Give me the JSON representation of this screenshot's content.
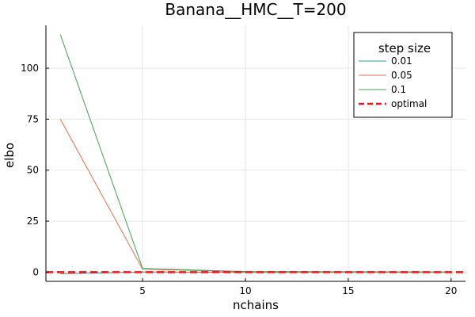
{
  "chart_data": {
    "type": "line",
    "title": "Banana__HMC__T=200",
    "xlabel": "nchains",
    "ylabel": "elbo",
    "xlim": [
      0.3,
      20.7
    ],
    "ylim": [
      -4.5,
      121
    ],
    "xticks": [
      5,
      10,
      15,
      20
    ],
    "yticks": [
      0,
      25,
      50,
      75,
      100
    ],
    "grid": true,
    "legend_title": "step size",
    "legend_position": "top-right",
    "series": [
      {
        "name": "0.01",
        "color": "#1a9fa9",
        "x": [
          1,
          5,
          10,
          15,
          20
        ],
        "y": [
          -0.8,
          0.1,
          -0.1,
          -0.1,
          -0.1
        ]
      },
      {
        "name": "0.05",
        "color": "#e26f46",
        "x": [
          1,
          5,
          10,
          15,
          20
        ],
        "y": [
          75,
          1.5,
          0.2,
          0.1,
          0.1
        ]
      },
      {
        "name": "0.1",
        "color": "#3da44d",
        "x": [
          1,
          5,
          10,
          15,
          20
        ],
        "y": [
          116.5,
          1.8,
          0.3,
          0.2,
          0.1
        ]
      }
    ],
    "reference_line": {
      "name": "optimal",
      "y": 0,
      "color": "#e31a1c",
      "style": "dashed"
    }
  }
}
